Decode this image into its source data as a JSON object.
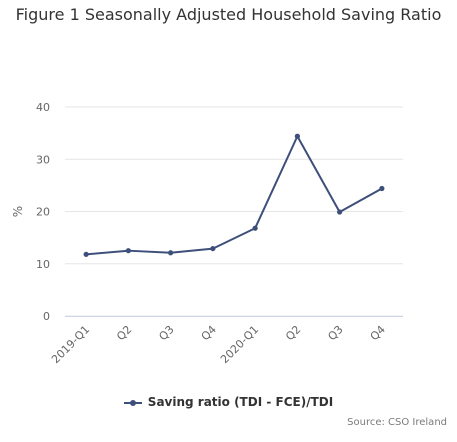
{
  "chart_data": {
    "type": "line",
    "title": "Figure 1 Seasonally Adjusted Household Saving Ratio",
    "ylabel": "%",
    "xlabel": "",
    "categories": [
      "2019-Q1",
      "Q2",
      "Q3",
      "Q4",
      "2020-Q1",
      "Q2",
      "Q3",
      "Q4"
    ],
    "series": [
      {
        "name": "Saving ratio (TDI - FCE)/TDI",
        "color": "#3d4f7a",
        "values": [
          11.8,
          12.5,
          12.1,
          12.9,
          16.8,
          34.4,
          19.9,
          24.4
        ]
      }
    ],
    "yticks": [
      0,
      10,
      20,
      30,
      40
    ],
    "ylim": [
      0,
      40
    ],
    "grid": true,
    "legend": "bottom"
  },
  "source": "Source: CSO Ireland"
}
